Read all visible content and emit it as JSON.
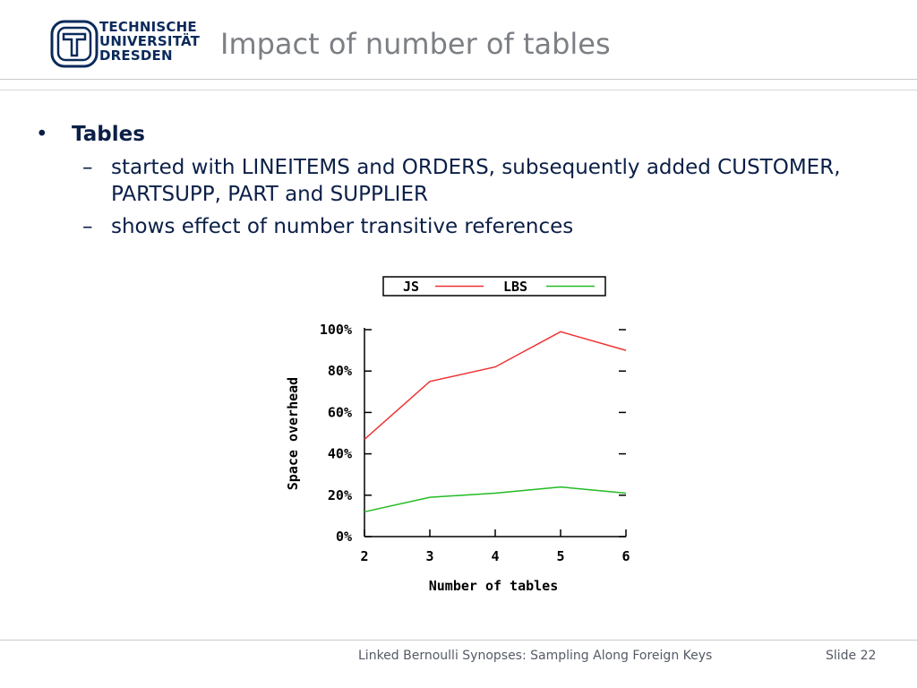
{
  "logo": {
    "lines": [
      "TECHNISCHE",
      "UNIVERSITÄT",
      "DRESDEN"
    ],
    "icon": "tu-dresden-emblem-icon",
    "color": "#0b2a5b"
  },
  "slide": {
    "title": "Impact of number of tables"
  },
  "content": {
    "bullet": "•",
    "heading": "Tables",
    "dash": "–",
    "subitems": [
      "started with LINEITEMS and ORDERS, subsequently added CUSTOMER, PARTSUPP, PART and SUPPLIER",
      "shows effect of number transitive references"
    ]
  },
  "footer": {
    "text": "Linked Bernoulli Synopses: Sampling Along Foreign Keys",
    "slide_number": "Slide 22"
  },
  "chart_data": {
    "type": "line",
    "x": [
      2,
      3,
      4,
      5,
      6
    ],
    "series": [
      {
        "name": "JS",
        "values": [
          47,
          75,
          82,
          99,
          90
        ],
        "color": "#ee3333"
      },
      {
        "name": "LBS",
        "values": [
          12,
          19,
          21,
          24,
          21
        ],
        "color": "#22bb22"
      }
    ],
    "x_ticks": [
      "2",
      "3",
      "4",
      "5",
      "6"
    ],
    "y_ticks": [
      "0%",
      "20%",
      "40%",
      "60%",
      "80%",
      "100%"
    ],
    "xlabel": "Number of tables",
    "ylabel": "Space overhead",
    "xlim": [
      2,
      6
    ],
    "ylim": [
      0,
      100
    ],
    "grid": false,
    "legend": "top"
  }
}
